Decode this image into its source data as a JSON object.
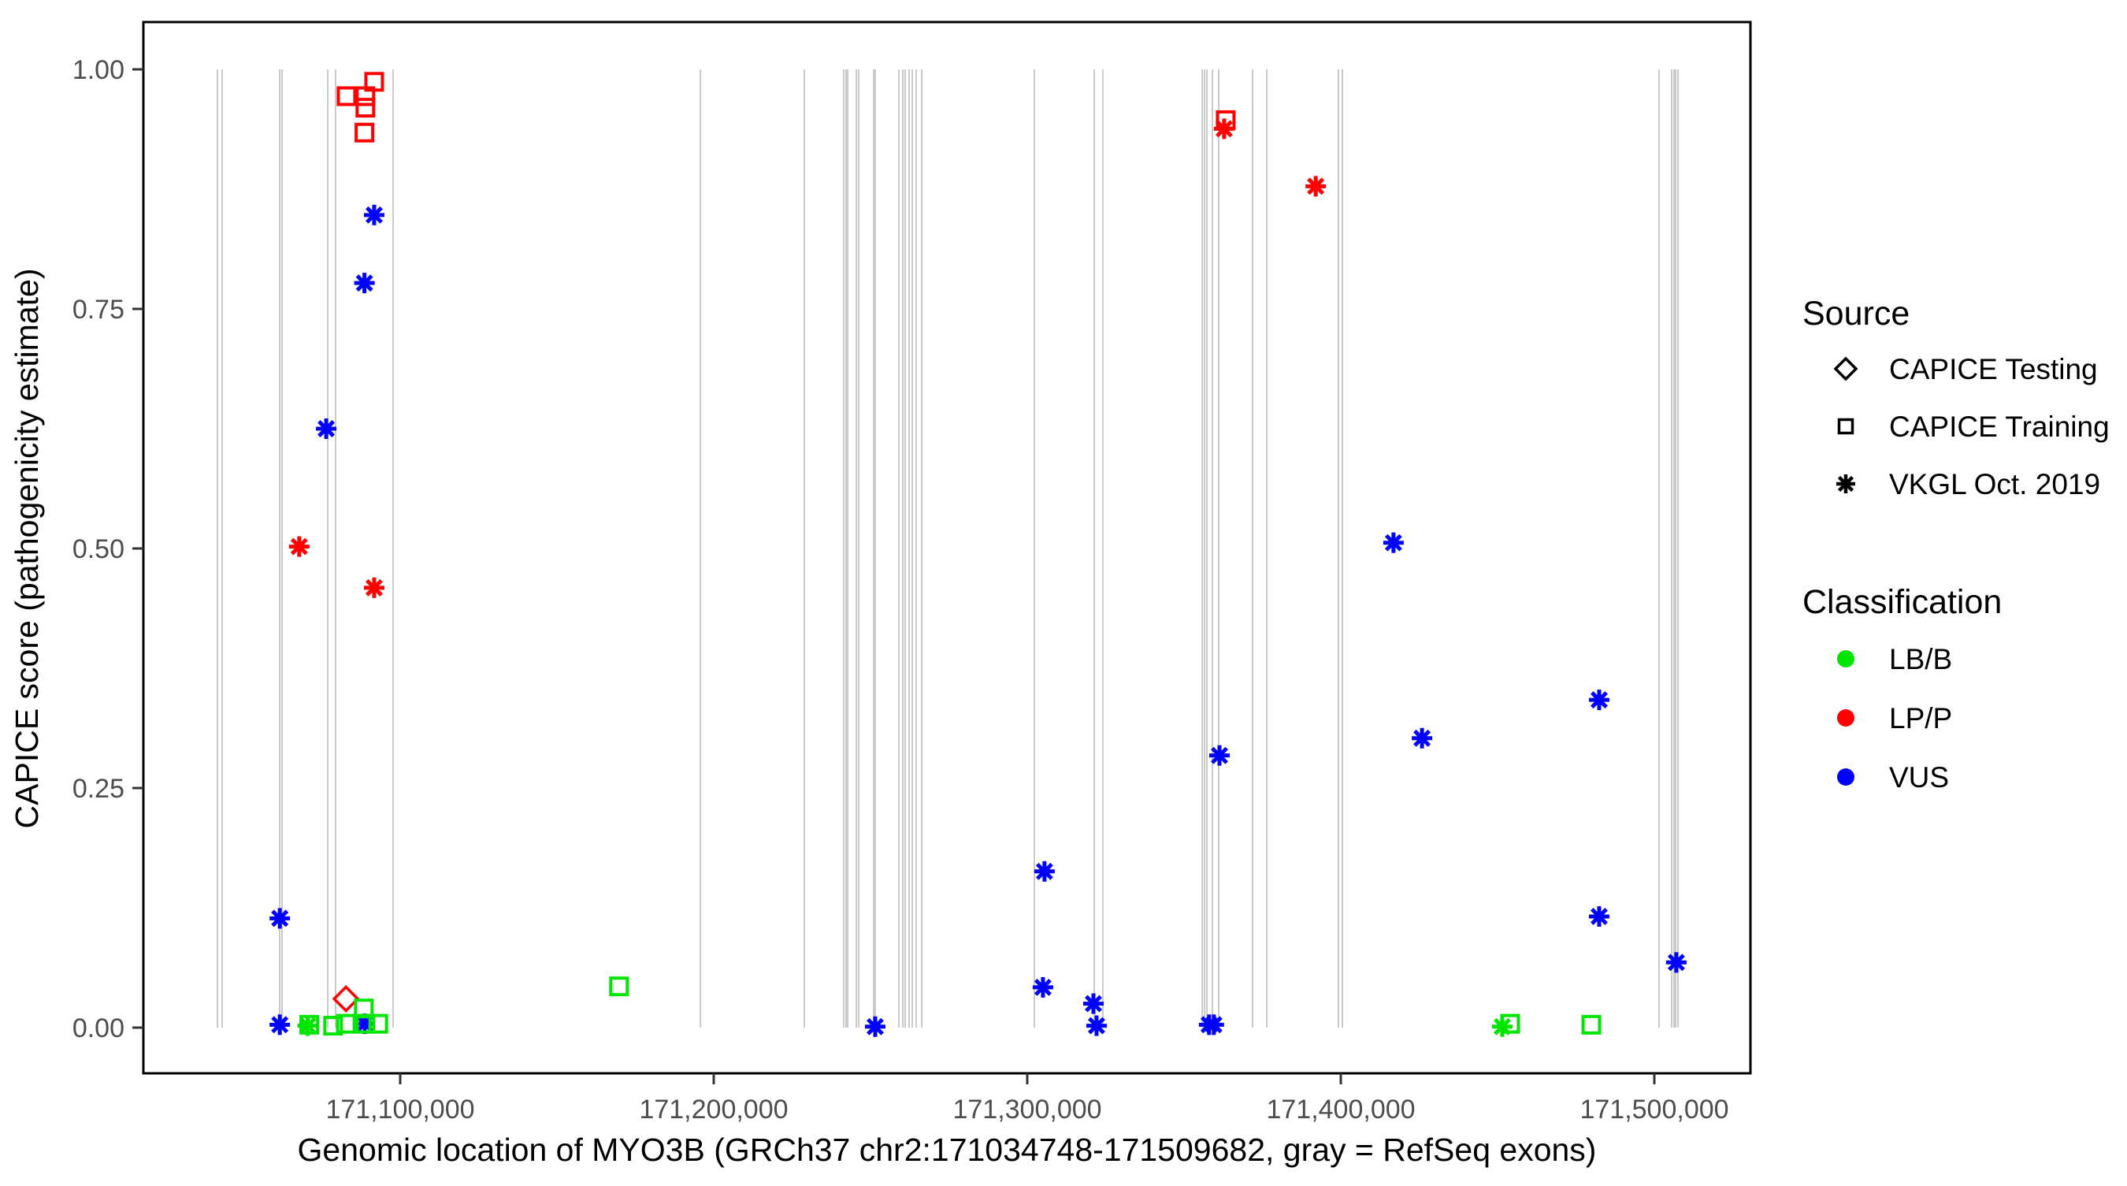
{
  "chart_data": {
    "type": "scatter",
    "title": "",
    "xlabel": "Genomic location of MYO3B (GRCh37 chr2:171034748-171509682, gray = RefSeq exons)",
    "ylabel": "CAPICE score (pathogenicity estimate)",
    "x_axis": {
      "domain": [
        171018090,
        171530650
      ],
      "ticks": [
        {
          "value": 171100000,
          "label": "171,100,000"
        },
        {
          "value": 171200000,
          "label": "171,200,000"
        },
        {
          "value": 171300000,
          "label": "171,300,000"
        },
        {
          "value": 171400000,
          "label": "171,400,000"
        },
        {
          "value": 171500000,
          "label": "171,500,000"
        }
      ]
    },
    "y_axis": {
      "domain": [
        0.0,
        1.0
      ],
      "ticks": [
        {
          "value": 0.0,
          "label": "0.00"
        },
        {
          "value": 0.25,
          "label": "0.25"
        },
        {
          "value": 0.5,
          "label": "0.50"
        },
        {
          "value": 0.75,
          "label": "0.75"
        },
        {
          "value": 1.0,
          "label": "1.00"
        }
      ]
    },
    "legend": {
      "source": {
        "title": "Source",
        "items": [
          {
            "label": "CAPICE Testing",
            "shape": "diamond"
          },
          {
            "label": "CAPICE Training",
            "shape": "square"
          },
          {
            "label": "VKGL Oct. 2019",
            "shape": "asterisk"
          }
        ]
      },
      "classification": {
        "title": "Classification",
        "items": [
          {
            "label": "LB/B",
            "color": "#00E600"
          },
          {
            "label": "LP/P",
            "color": "#FF0000"
          },
          {
            "label": "VUS",
            "color": "#0000FF"
          }
        ]
      }
    },
    "colors": {
      "LB/B": "#00E600",
      "LP/P": "#FF0000",
      "VUS": "#0000FF",
      "exon": "#C9C9C9",
      "tick_text": "#4D4D4D",
      "panel_border": "#000000"
    },
    "exon_positions": [
      171041700,
      171043200,
      171061550,
      171062300,
      171076900,
      171079400,
      171097750,
      171195750,
      171228900,
      171241450,
      171242200,
      171242700,
      171245500,
      171246250,
      171251000,
      171251500,
      171259050,
      171260300,
      171261050,
      171262300,
      171263300,
      171264550,
      171266350,
      171302250,
      171321350,
      171324100,
      171355800,
      171356550,
      171357300,
      171359050,
      171361050,
      171371850,
      171376400,
      171399250,
      171400500,
      171501500,
      171505550,
      171506300,
      171506800,
      171507550
    ],
    "points": [
      {
        "pos": 171091700,
        "score": 0.987,
        "source": "CAPICE Training",
        "classification": "LP/P"
      },
      {
        "pos": 171082900,
        "score": 0.972,
        "source": "CAPICE Training",
        "classification": "LP/P"
      },
      {
        "pos": 171088900,
        "score": 0.972,
        "source": "CAPICE Training",
        "classification": "LP/P"
      },
      {
        "pos": 171088900,
        "score": 0.96,
        "source": "CAPICE Training",
        "classification": "LP/P"
      },
      {
        "pos": 171088600,
        "score": 0.934,
        "source": "CAPICE Training",
        "classification": "LP/P"
      },
      {
        "pos": 171067800,
        "score": 0.502,
        "source": "VKGL Oct. 2019",
        "classification": "LP/P"
      },
      {
        "pos": 171091700,
        "score": 0.459,
        "source": "VKGL Oct. 2019",
        "classification": "LP/P"
      },
      {
        "pos": 171082700,
        "score": 0.03,
        "source": "CAPICE Testing",
        "classification": "LP/P"
      },
      {
        "pos": 171363300,
        "score": 0.947,
        "source": "CAPICE Training",
        "classification": "LP/P"
      },
      {
        "pos": 171362800,
        "score": 0.938,
        "source": "VKGL Oct. 2019",
        "classification": "LP/P"
      },
      {
        "pos": 171392000,
        "score": 0.878,
        "source": "VKGL Oct. 2019",
        "classification": "LP/P"
      },
      {
        "pos": 171091700,
        "score": 0.848,
        "source": "VKGL Oct. 2019",
        "classification": "VUS"
      },
      {
        "pos": 171088600,
        "score": 0.777,
        "source": "VKGL Oct. 2019",
        "classification": "VUS"
      },
      {
        "pos": 171076400,
        "score": 0.625,
        "source": "VKGL Oct. 2019",
        "classification": "VUS"
      },
      {
        "pos": 171061600,
        "score": 0.114,
        "source": "VKGL Oct. 2019",
        "classification": "VUS"
      },
      {
        "pos": 171061600,
        "score": 0.003,
        "source": "VKGL Oct. 2019",
        "classification": "VUS"
      },
      {
        "pos": 171088700,
        "score": 0.004,
        "source": "VKGL Oct. 2019",
        "classification": "VUS"
      },
      {
        "pos": 171251500,
        "score": 0.001,
        "source": "VKGL Oct. 2019",
        "classification": "VUS"
      },
      {
        "pos": 171305500,
        "score": 0.163,
        "source": "VKGL Oct. 2019",
        "classification": "VUS"
      },
      {
        "pos": 171305000,
        "score": 0.042,
        "source": "VKGL Oct. 2019",
        "classification": "VUS"
      },
      {
        "pos": 171321100,
        "score": 0.025,
        "source": "VKGL Oct. 2019",
        "classification": "VUS"
      },
      {
        "pos": 171322100,
        "score": 0.002,
        "source": "VKGL Oct. 2019",
        "classification": "VUS"
      },
      {
        "pos": 171358000,
        "score": 0.003,
        "source": "VKGL Oct. 2019",
        "classification": "VUS"
      },
      {
        "pos": 171359500,
        "score": 0.003,
        "source": "VKGL Oct. 2019",
        "classification": "VUS"
      },
      {
        "pos": 171361300,
        "score": 0.284,
        "source": "VKGL Oct. 2019",
        "classification": "VUS"
      },
      {
        "pos": 171416800,
        "score": 0.506,
        "source": "VKGL Oct. 2019",
        "classification": "VUS"
      },
      {
        "pos": 171425900,
        "score": 0.302,
        "source": "VKGL Oct. 2019",
        "classification": "VUS"
      },
      {
        "pos": 171482400,
        "score": 0.342,
        "source": "VKGL Oct. 2019",
        "classification": "VUS"
      },
      {
        "pos": 171482400,
        "score": 0.116,
        "source": "VKGL Oct. 2019",
        "classification": "VUS"
      },
      {
        "pos": 171507000,
        "score": 0.068,
        "source": "VKGL Oct. 2019",
        "classification": "VUS"
      },
      {
        "pos": 171070500,
        "score": 0.002,
        "source": "VKGL Oct. 2019",
        "classification": "LB/B"
      },
      {
        "pos": 171071000,
        "score": 0.003,
        "source": "CAPICE Training",
        "classification": "LB/B"
      },
      {
        "pos": 171078600,
        "score": 0.002,
        "source": "CAPICE Training",
        "classification": "LB/B"
      },
      {
        "pos": 171082700,
        "score": 0.004,
        "source": "CAPICE Training",
        "classification": "LB/B"
      },
      {
        "pos": 171088400,
        "score": 0.02,
        "source": "CAPICE Training",
        "classification": "LB/B"
      },
      {
        "pos": 171088900,
        "score": 0.004,
        "source": "CAPICE Training",
        "classification": "LB/B"
      },
      {
        "pos": 171093000,
        "score": 0.004,
        "source": "CAPICE Training",
        "classification": "LB/B"
      },
      {
        "pos": 171169800,
        "score": 0.043,
        "source": "CAPICE Training",
        "classification": "LB/B"
      },
      {
        "pos": 171451500,
        "score": 0.001,
        "source": "VKGL Oct. 2019",
        "classification": "LB/B"
      },
      {
        "pos": 171454000,
        "score": 0.004,
        "source": "CAPICE Training",
        "classification": "LB/B"
      },
      {
        "pos": 171479900,
        "score": 0.003,
        "source": "CAPICE Training",
        "classification": "LB/B"
      }
    ]
  }
}
